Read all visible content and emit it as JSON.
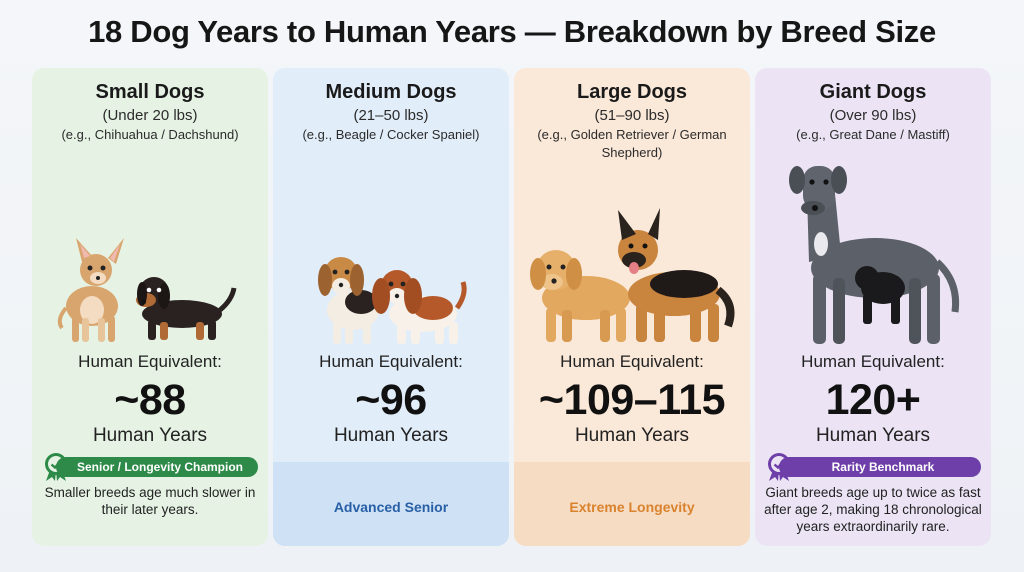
{
  "title": "18 Dog Years to Human Years — Breakdown by Breed Size",
  "colors": {
    "small_bg": "#e6f3e4",
    "small_accent": "#2e8a48",
    "medium_bg": "#e1edf9",
    "medium_band": "#cfe2f5",
    "medium_accent": "#285fa6",
    "large_bg": "#fae8d8",
    "large_band": "#f7dcc4",
    "large_accent": "#d9832e",
    "giant_bg": "#ece4f5",
    "giant_accent": "#6e3fa9"
  },
  "cards": [
    {
      "name": "Small Dogs",
      "weight": "(Under 20 lbs)",
      "examples": "(e.g., Chihuahua / Dachshund)",
      "human_label": "Human Equivalent:",
      "human_years": "~88",
      "human_unit": "Human Years",
      "badge": "Senior / Longevity Champion",
      "badge_icon": "ribbon-check-icon",
      "description": "Smaller breeds age much slower in their later years."
    },
    {
      "name": "Medium Dogs",
      "weight": "(21–50 lbs)",
      "examples": "(e.g., Beagle / Cocker Spaniel)",
      "human_label": "Human Equivalent:",
      "human_years": "~96",
      "human_unit": "Human Years",
      "band_label": "Advanced Senior"
    },
    {
      "name": "Large Dogs",
      "weight": "(51–90 lbs)",
      "examples": "(e.g., Golden Retriever / German Shepherd)",
      "human_label": "Human Equivalent:",
      "human_years": "~109–115",
      "human_unit": "Human Years",
      "band_label": "Extreme Longevity"
    },
    {
      "name": "Giant Dogs",
      "weight": "(Over 90 lbs)",
      "examples": "(e.g., Great Dane / Mastiff)",
      "human_label": "Human Equivalent:",
      "human_years": "120+",
      "human_unit": "Human Years",
      "badge": "Rarity Benchmark",
      "badge_icon": "ribbon-check-icon",
      "description": "Giant breeds age up to twice as fast after age 2, making 18 chronological years extraordinarily rare."
    }
  ]
}
